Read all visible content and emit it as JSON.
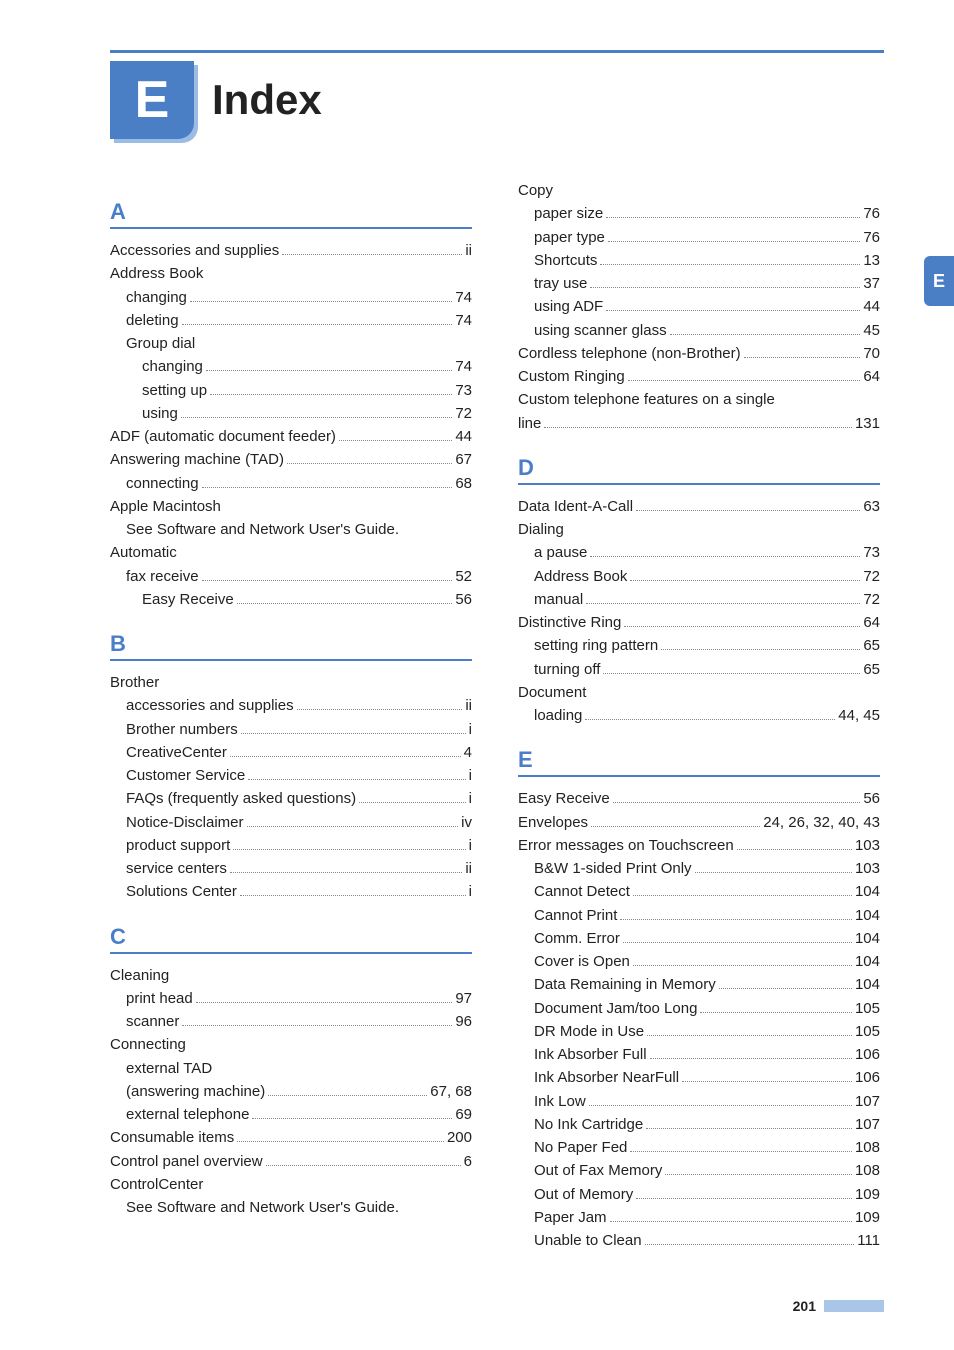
{
  "chapter": {
    "letter": "E",
    "title": "Index"
  },
  "sideTab": "E",
  "pageNumber": "201",
  "leftSections": [
    {
      "letter": "A",
      "entries": [
        {
          "label": "Accessories and supplies",
          "page": "ii",
          "indent": 0
        },
        {
          "label": "Address Book",
          "indent": 0,
          "noPage": true
        },
        {
          "label": "changing",
          "page": "74",
          "indent": 1
        },
        {
          "label": "deleting",
          "page": "74",
          "indent": 1
        },
        {
          "label": "Group dial",
          "indent": 1,
          "noPage": true
        },
        {
          "label": "changing",
          "page": "74",
          "indent": 2
        },
        {
          "label": "setting up",
          "page": "73",
          "indent": 2
        },
        {
          "label": "using",
          "page": "72",
          "indent": 2
        },
        {
          "label": "ADF (automatic document feeder)",
          "page": "44",
          "indent": 0
        },
        {
          "label": "Answering machine (TAD)",
          "page": "67",
          "indent": 0
        },
        {
          "label": "connecting",
          "page": "68",
          "indent": 1
        },
        {
          "label": "Apple Macintosh",
          "indent": 0,
          "noPage": true
        },
        {
          "label": "See Software and Network User's Guide.",
          "indent": 1,
          "noPage": true
        },
        {
          "label": "Automatic",
          "indent": 0,
          "noPage": true
        },
        {
          "label": "fax receive",
          "page": "52",
          "indent": 1
        },
        {
          "label": "Easy Receive",
          "page": "56",
          "indent": 2
        }
      ]
    },
    {
      "letter": "B",
      "entries": [
        {
          "label": "Brother",
          "indent": 0,
          "noPage": true
        },
        {
          "label": "accessories and supplies",
          "page": "ii",
          "indent": 1
        },
        {
          "label": "Brother numbers",
          "page": "i",
          "indent": 1
        },
        {
          "label": "CreativeCenter",
          "page": "4",
          "indent": 1
        },
        {
          "label": "Customer Service",
          "page": "i",
          "indent": 1
        },
        {
          "label": "FAQs (frequently asked questions)",
          "page": "i",
          "indent": 1
        },
        {
          "label": "Notice-Disclaimer",
          "page": "iv",
          "indent": 1
        },
        {
          "label": "product support",
          "page": "i",
          "indent": 1
        },
        {
          "label": "service centers",
          "page": "ii",
          "indent": 1
        },
        {
          "label": "Solutions Center",
          "page": "i",
          "indent": 1
        }
      ]
    },
    {
      "letter": "C",
      "entries": [
        {
          "label": "Cleaning",
          "indent": 0,
          "noPage": true
        },
        {
          "label": "print head",
          "page": "97",
          "indent": 1
        },
        {
          "label": "scanner",
          "page": "96",
          "indent": 1
        },
        {
          "label": "Connecting",
          "indent": 0,
          "noPage": true
        },
        {
          "label": "external TAD",
          "indent": 1,
          "noPage": true
        },
        {
          "label": "(answering machine)",
          "page": "67, 68",
          "indent": 1
        },
        {
          "label": "external telephone",
          "page": "69",
          "indent": 1
        },
        {
          "label": "Consumable items",
          "page": "200",
          "indent": 0
        },
        {
          "label": "Control panel overview",
          "page": "6",
          "indent": 0
        },
        {
          "label": "ControlCenter",
          "indent": 0,
          "noPage": true
        },
        {
          "label": "See Software and Network User's Guide.",
          "indent": 1,
          "noPage": true
        }
      ]
    }
  ],
  "rightSections": [
    {
      "entries": [
        {
          "label": "Copy",
          "indent": 0,
          "noPage": true
        },
        {
          "label": "paper size",
          "page": "76",
          "indent": 1
        },
        {
          "label": "paper type",
          "page": "76",
          "indent": 1
        },
        {
          "label": "Shortcuts",
          "page": "13",
          "indent": 1
        },
        {
          "label": "tray use",
          "page": "37",
          "indent": 1
        },
        {
          "label": "using ADF",
          "page": "44",
          "indent": 1
        },
        {
          "label": "using scanner glass",
          "page": "45",
          "indent": 1
        },
        {
          "label": "Cordless telephone (non-Brother)",
          "page": "70",
          "indent": 0
        },
        {
          "label": "Custom Ringing",
          "page": "64",
          "indent": 0
        },
        {
          "label": "Custom telephone features on a single",
          "indent": 0,
          "noPage": true
        },
        {
          "label": "line",
          "page": "131",
          "indent": 0
        }
      ]
    },
    {
      "letter": "D",
      "entries": [
        {
          "label": "Data Ident-A-Call",
          "page": "63",
          "indent": 0
        },
        {
          "label": "Dialing",
          "indent": 0,
          "noPage": true
        },
        {
          "label": "a pause",
          "page": "73",
          "indent": 1
        },
        {
          "label": "Address Book",
          "page": "72",
          "indent": 1
        },
        {
          "label": "manual",
          "page": "72",
          "indent": 1
        },
        {
          "label": "Distinctive Ring",
          "page": "64",
          "indent": 0
        },
        {
          "label": "setting ring pattern",
          "page": "65",
          "indent": 1
        },
        {
          "label": "turning off",
          "page": "65",
          "indent": 1
        },
        {
          "label": "Document",
          "indent": 0,
          "noPage": true
        },
        {
          "label": "loading",
          "page": "44, 45",
          "indent": 1
        }
      ]
    },
    {
      "letter": "E",
      "entries": [
        {
          "label": "Easy Receive",
          "page": "56",
          "indent": 0
        },
        {
          "label": "Envelopes",
          "page": "24, 26, 32, 40, 43",
          "indent": 0
        },
        {
          "label": "Error messages on Touchscreen",
          "page": "103",
          "indent": 0
        },
        {
          "label": "B&W 1-sided Print Only",
          "page": "103",
          "indent": 1
        },
        {
          "label": "Cannot Detect",
          "page": "104",
          "indent": 1
        },
        {
          "label": "Cannot Print",
          "page": "104",
          "indent": 1
        },
        {
          "label": "Comm. Error",
          "page": "104",
          "indent": 1
        },
        {
          "label": "Cover is Open",
          "page": "104",
          "indent": 1
        },
        {
          "label": "Data Remaining in Memory",
          "page": "104",
          "indent": 1
        },
        {
          "label": "Document Jam/too Long",
          "page": "105",
          "indent": 1
        },
        {
          "label": "DR Mode in Use",
          "page": "105",
          "indent": 1
        },
        {
          "label": "Ink Absorber Full",
          "page": "106",
          "indent": 1
        },
        {
          "label": "Ink Absorber NearFull",
          "page": "106",
          "indent": 1
        },
        {
          "label": "Ink Low",
          "page": "107",
          "indent": 1
        },
        {
          "label": "No Ink Cartridge",
          "page": "107",
          "indent": 1
        },
        {
          "label": "No Paper Fed",
          "page": "108",
          "indent": 1
        },
        {
          "label": "Out of Fax Memory",
          "page": "108",
          "indent": 1
        },
        {
          "label": "Out of Memory",
          "page": "109",
          "indent": 1
        },
        {
          "label": "Paper Jam",
          "page": "109",
          "indent": 1
        },
        {
          "label": "Unable to Clean",
          "page": "111",
          "indent": 1
        }
      ]
    }
  ]
}
